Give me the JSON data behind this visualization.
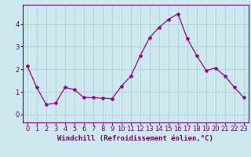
{
  "x": [
    0,
    1,
    2,
    3,
    4,
    5,
    6,
    7,
    8,
    9,
    10,
    11,
    12,
    13,
    14,
    15,
    16,
    17,
    18,
    19,
    20,
    21,
    22,
    23
  ],
  "y": [
    2.15,
    1.2,
    0.45,
    0.5,
    1.2,
    1.1,
    0.75,
    0.75,
    0.72,
    0.7,
    1.25,
    1.7,
    2.6,
    3.4,
    3.85,
    4.2,
    4.45,
    3.35,
    2.6,
    1.95,
    2.05,
    1.7,
    1.2,
    0.75
  ],
  "line_color": "#990099",
  "marker": "*",
  "marker_size": 3,
  "background_color": "#cce9f0",
  "grid_color": "#aacccc",
  "xlabel": "Windchill (Refroidissement éolien,°C)",
  "xlim": [
    -0.5,
    23.5
  ],
  "ylim": [
    -0.35,
    4.85
  ],
  "yticks": [
    0,
    1,
    2,
    3,
    4
  ],
  "xticks": [
    0,
    1,
    2,
    3,
    4,
    5,
    6,
    7,
    8,
    9,
    10,
    11,
    12,
    13,
    14,
    15,
    16,
    17,
    18,
    19,
    20,
    21,
    22,
    23
  ],
  "xlabel_fontsize": 6.5,
  "tick_fontsize": 6,
  "label_color": "#660066",
  "spine_color": "#660066"
}
